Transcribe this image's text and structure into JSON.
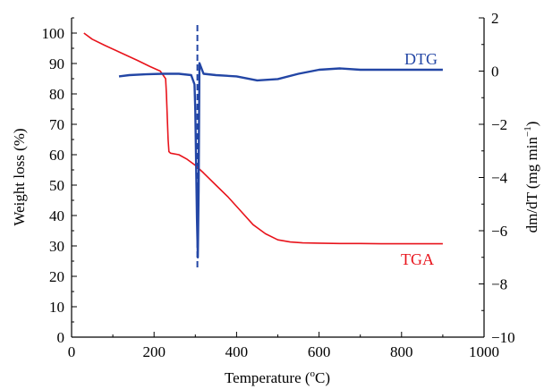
{
  "chart_data": {
    "type": "line",
    "xlabel": "Temperature (°C)",
    "xlabel_parts": {
      "pre": "Temperature (",
      "sup": "o",
      "post": "C)"
    },
    "ylabel": "Weight loss (%)",
    "y2label": "dm/dT (mg min−1)",
    "y2label_parts": {
      "pre": "dm/dT (mg min",
      "sup": "−1",
      "post": ")"
    },
    "xlim": [
      0,
      1000
    ],
    "ylim": [
      0,
      105
    ],
    "y2lim": [
      -10,
      2
    ],
    "xticks": [
      0,
      200,
      400,
      600,
      800,
      1000
    ],
    "yticks": [
      0,
      10,
      20,
      30,
      40,
      50,
      60,
      70,
      80,
      90,
      100
    ],
    "y2ticks": [
      2,
      0,
      -2,
      -4,
      -6,
      -8,
      -10
    ],
    "grid": false,
    "series": [
      {
        "name": "TGA",
        "axis": "left",
        "color": "#e8131b",
        "x": [
          30,
          50,
          80,
          120,
          160,
          190,
          215,
          228,
          230,
          232,
          234,
          236,
          240,
          260,
          280,
          300,
          320,
          350,
          380,
          410,
          440,
          470,
          500,
          530,
          560,
          600,
          650,
          700,
          750,
          800,
          850,
          900
        ],
        "y": [
          100,
          98,
          96,
          93.5,
          91,
          89,
          87.5,
          85,
          80,
          72,
          65,
          61,
          60.5,
          60,
          58.5,
          56.5,
          54,
          50,
          46,
          41.5,
          37,
          34,
          32,
          31.3,
          31,
          30.9,
          30.8,
          30.8,
          30.7,
          30.7,
          30.7,
          30.7
        ]
      },
      {
        "name": "DTG",
        "axis": "right",
        "color": "#2346a5",
        "x": [
          115,
          140,
          180,
          220,
          260,
          290,
          298,
          300,
          302,
          304,
          306,
          308,
          310,
          320,
          350,
          400,
          450,
          500,
          550,
          600,
          650,
          700,
          750,
          800,
          850,
          900
        ],
        "y": [
          -0.2,
          -0.15,
          -0.12,
          -0.1,
          -0.1,
          -0.15,
          -0.5,
          -1.5,
          -3.5,
          -5.5,
          -7,
          -4.5,
          0.3,
          -0.1,
          -0.15,
          -0.2,
          -0.35,
          -0.3,
          -0.1,
          0.05,
          0.1,
          0.05,
          0.05,
          0.05,
          0.05,
          0.05
        ]
      }
    ],
    "annotations": [
      "DTG",
      "TGA"
    ],
    "reference_line": {
      "x": 305,
      "style": "dashed",
      "color": "#2346a5"
    }
  }
}
